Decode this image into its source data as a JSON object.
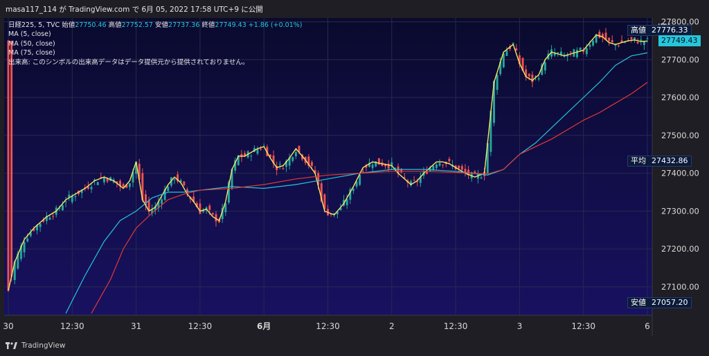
{
  "header": {
    "publish_line": "masa117_114 が TradingView.com で 6月 05, 2022 17:58 UTC+9 に公開"
  },
  "legend": {
    "symbol": "日経225, 5, TVC",
    "open_label": "始値",
    "open_value": "27750.46",
    "high_label": "高値",
    "high_value": "27752.57",
    "low_label": "安値",
    "low_value": "27737.36",
    "close_label": "終値",
    "close_value": "27749.43",
    "change": "+1.86 (+0.01%)",
    "ma1": "MA (5, close)",
    "ma2": "MA (50, close)",
    "ma3": "MA (75, close)",
    "volume_note": "出来高: このシンボルの出来高データはデータ提供元から提供されておりません。"
  },
  "footer": {
    "brand": "TradingView"
  },
  "colors": {
    "background_top": "#0a0a2e",
    "background_bottom": "#181160",
    "up": "#26a69a",
    "down": "#ef5350",
    "ma5": "#f5e663",
    "ma50": "#26c6da",
    "ma75": "#e53935",
    "axis_text": "#d9d9d9"
  },
  "chart_data": {
    "type": "line",
    "currency": "JPY",
    "ylim": [
      27025,
      27810
    ],
    "y_ticks": [
      "27100.00",
      "27200.00",
      "27300.00",
      "27400.00",
      "27500.00",
      "27600.00",
      "27700.00",
      "27800.00"
    ],
    "y_tick_values": [
      27100,
      27200,
      27300,
      27400,
      27500,
      27600,
      27700,
      27800
    ],
    "x_ticks": [
      "30",
      "12:30",
      "31",
      "12:30",
      "6月",
      "12:30",
      "2",
      "12:30",
      "3",
      "12:30",
      "6"
    ],
    "x_tick_index": [
      0,
      20,
      40,
      60,
      80,
      100,
      120,
      140,
      160,
      180,
      200
    ],
    "x_tick_bold": [
      false,
      false,
      false,
      false,
      true,
      false,
      false,
      false,
      false,
      false,
      false
    ],
    "price_labels": [
      {
        "label": "高値",
        "value": "27776.33",
        "y": 27776.33,
        "style": "dark"
      },
      {
        "label": "",
        "value": "27749.43",
        "y": 27749.43,
        "style": "accent"
      },
      {
        "label": "平均",
        "value": "27432.86",
        "y": 27432.86,
        "style": "dark"
      },
      {
        "label": "安値",
        "value": "27057.20",
        "y": 27057.2,
        "style": "dark"
      }
    ],
    "series": [
      {
        "name": "MA (5, close)",
        "color": "#f5e663",
        "x": [
          0,
          2,
          5,
          8,
          12,
          15,
          18,
          21,
          24,
          27,
          30,
          33,
          36,
          38,
          40,
          42,
          44,
          46,
          48,
          50,
          52,
          54,
          56,
          58,
          60,
          62,
          64,
          66,
          68,
          70,
          72,
          74,
          76,
          78,
          80,
          82,
          84,
          86,
          88,
          90,
          93,
          96,
          99,
          102,
          105,
          108,
          111,
          114,
          117,
          120,
          122,
          124,
          126,
          128,
          130,
          132,
          134,
          136,
          138,
          140,
          143,
          146,
          149,
          152,
          155,
          158,
          160,
          162,
          164,
          166,
          168,
          170,
          172,
          174,
          176,
          178,
          180,
          182,
          184,
          186,
          188,
          190,
          192,
          194,
          196,
          198,
          200
        ],
        "values": [
          27090,
          27165,
          27225,
          27255,
          27285,
          27300,
          27330,
          27345,
          27360,
          27380,
          27390,
          27380,
          27360,
          27380,
          27430,
          27330,
          27300,
          27310,
          27340,
          27370,
          27390,
          27375,
          27345,
          27325,
          27300,
          27305,
          27285,
          27275,
          27325,
          27410,
          27445,
          27445,
          27455,
          27465,
          27470,
          27440,
          27415,
          27420,
          27440,
          27465,
          27435,
          27400,
          27300,
          27290,
          27320,
          27365,
          27415,
          27430,
          27425,
          27420,
          27400,
          27385,
          27370,
          27380,
          27400,
          27415,
          27430,
          27430,
          27425,
          27415,
          27400,
          27390,
          27400,
          27640,
          27720,
          27740,
          27690,
          27655,
          27645,
          27660,
          27700,
          27720,
          27715,
          27710,
          27715,
          27720,
          27725,
          27745,
          27765,
          27760,
          27745,
          27740,
          27745,
          27750,
          27752,
          27748,
          27749
        ]
      },
      {
        "name": "MA (50, close)",
        "color": "#26c6da",
        "x": [
          18,
          24,
          30,
          35,
          40,
          45,
          50,
          55,
          60,
          65,
          70,
          80,
          90,
          100,
          110,
          120,
          130,
          140,
          150,
          155,
          160,
          165,
          170,
          175,
          180,
          185,
          190,
          195,
          200
        ],
        "values": [
          27030,
          27130,
          27220,
          27275,
          27300,
          27335,
          27350,
          27350,
          27355,
          27360,
          27365,
          27360,
          27370,
          27385,
          27400,
          27410,
          27410,
          27405,
          27395,
          27410,
          27450,
          27480,
          27520,
          27560,
          27600,
          27640,
          27685,
          27710,
          27718
        ]
      },
      {
        "name": "MA (75, close)",
        "color": "#e53935",
        "x": [
          26,
          32,
          36,
          40,
          45,
          50,
          55,
          60,
          70,
          80,
          90,
          100,
          110,
          120,
          130,
          140,
          150,
          155,
          160,
          165,
          170,
          175,
          180,
          185,
          190,
          195,
          200
        ],
        "values": [
          27030,
          27120,
          27200,
          27255,
          27295,
          27330,
          27345,
          27355,
          27360,
          27370,
          27385,
          27395,
          27400,
          27405,
          27405,
          27402,
          27398,
          27410,
          27450,
          27470,
          27490,
          27515,
          27540,
          27560,
          27585,
          27610,
          27640
        ]
      }
    ]
  }
}
